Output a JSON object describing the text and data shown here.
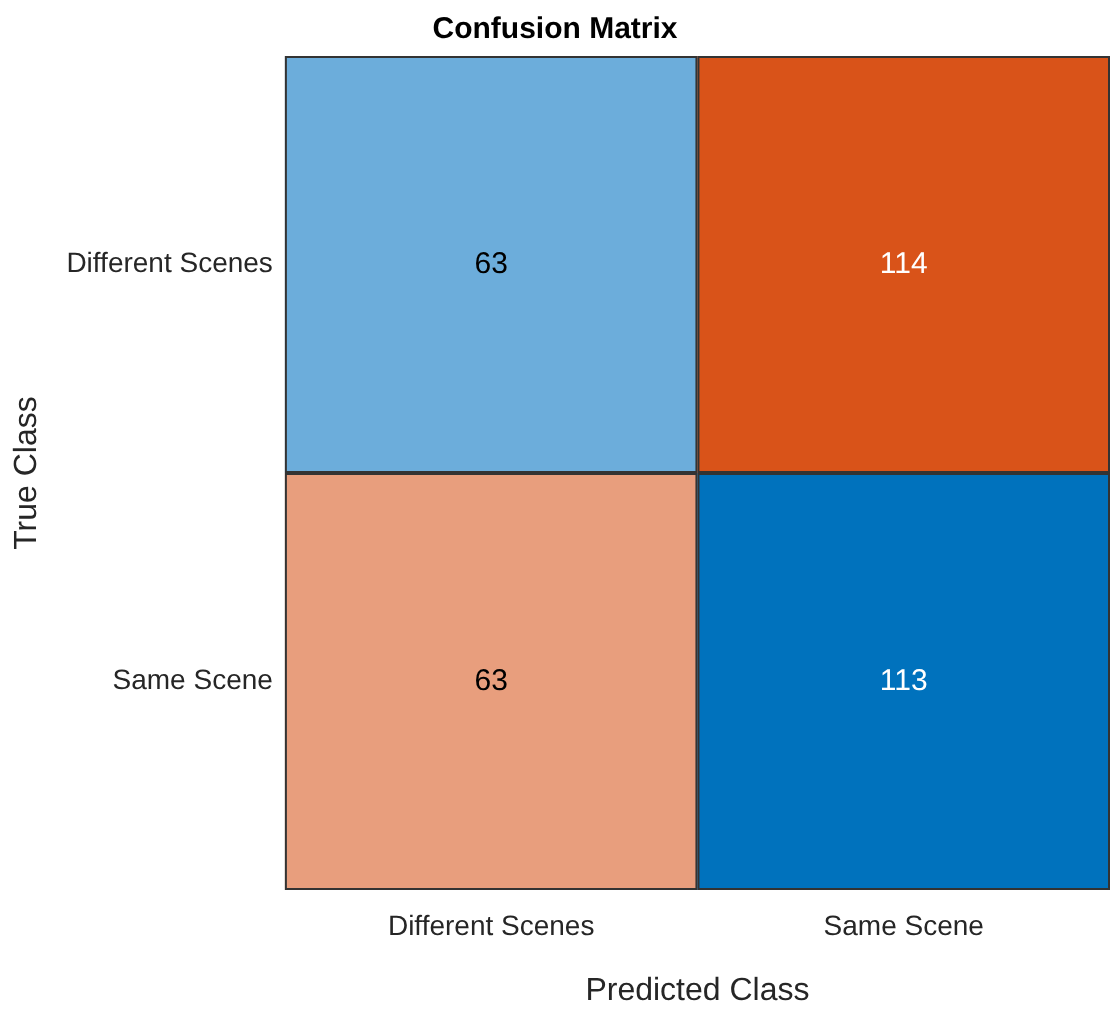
{
  "chart_data": {
    "type": "heatmap",
    "title": "Confusion Matrix",
    "xlabel": "Predicted Class",
    "ylabel": "True Class",
    "categories": [
      "Different Scenes",
      "Same Scene"
    ],
    "y_categories": [
      "Different Scenes",
      "Same Scene"
    ],
    "cells": [
      [
        63,
        114
      ],
      [
        63,
        113
      ]
    ],
    "colors": [
      [
        "#6caddb",
        "#d95319"
      ],
      [
        "#e89e7d",
        "#0072bd"
      ]
    ],
    "data_labels": true,
    "grid": false
  }
}
